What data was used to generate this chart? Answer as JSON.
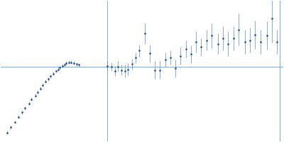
{
  "bg_color": "#ffffff",
  "point_color": "#1a4a9a",
  "error_color": "#5588cc",
  "axis_line_color": "#88aacc",
  "figsize": [
    4.0,
    2.0
  ],
  "dpi": 100,
  "xlim": [
    -0.55,
    1.65
  ],
  "ylim": [
    -0.85,
    0.75
  ],
  "vline_x": 0.28,
  "vline2_x": 1.62,
  "hline_y": 0.0,
  "data": {
    "x": [
      -0.5,
      -0.47,
      -0.44,
      -0.41,
      -0.38,
      -0.36,
      -0.33,
      -0.31,
      -0.28,
      -0.26,
      -0.24,
      -0.22,
      -0.2,
      -0.18,
      -0.16,
      -0.14,
      -0.12,
      -0.1,
      -0.09,
      -0.07,
      -0.05,
      -0.04,
      -0.02,
      0.0,
      0.02,
      0.04,
      0.06,
      0.28,
      0.31,
      0.34,
      0.36,
      0.39,
      0.42,
      0.44,
      0.47,
      0.5,
      0.53,
      0.57,
      0.61,
      0.65,
      0.69,
      0.73,
      0.77,
      0.81,
      0.85,
      0.89,
      0.93,
      0.97,
      1.01,
      1.05,
      1.09,
      1.14,
      1.18,
      1.22,
      1.26,
      1.3,
      1.35,
      1.39,
      1.43,
      1.47,
      1.52,
      1.56,
      1.6
    ],
    "y": [
      -0.75,
      -0.69,
      -0.63,
      -0.57,
      -0.52,
      -0.47,
      -0.42,
      -0.37,
      -0.33,
      -0.29,
      -0.25,
      -0.21,
      -0.17,
      -0.14,
      -0.11,
      -0.08,
      -0.05,
      -0.03,
      -0.01,
      0.01,
      0.02,
      0.04,
      0.05,
      0.05,
      0.04,
      0.03,
      0.02,
      0.01,
      0.0,
      -0.05,
      0.0,
      -0.04,
      -0.05,
      -0.03,
      0.03,
      0.1,
      0.18,
      0.38,
      0.15,
      -0.04,
      -0.04,
      0.08,
      0.1,
      -0.02,
      0.12,
      0.2,
      0.14,
      0.28,
      0.22,
      0.3,
      0.35,
      0.26,
      0.32,
      0.26,
      0.32,
      0.42,
      0.28,
      0.3,
      0.36,
      0.28,
      0.35,
      0.55,
      0.28
    ],
    "yerr": [
      0.02,
      0.02,
      0.02,
      0.02,
      0.02,
      0.02,
      0.02,
      0.02,
      0.02,
      0.02,
      0.02,
      0.02,
      0.02,
      0.02,
      0.02,
      0.02,
      0.02,
      0.02,
      0.02,
      0.02,
      0.02,
      0.02,
      0.02,
      0.02,
      0.02,
      0.02,
      0.02,
      0.05,
      0.05,
      0.06,
      0.06,
      0.06,
      0.07,
      0.07,
      0.06,
      0.06,
      0.07,
      0.12,
      0.1,
      0.1,
      0.1,
      0.08,
      0.08,
      0.1,
      0.1,
      0.1,
      0.1,
      0.12,
      0.1,
      0.12,
      0.14,
      0.12,
      0.14,
      0.14,
      0.14,
      0.18,
      0.14,
      0.14,
      0.16,
      0.14,
      0.16,
      0.28,
      0.14
    ]
  }
}
